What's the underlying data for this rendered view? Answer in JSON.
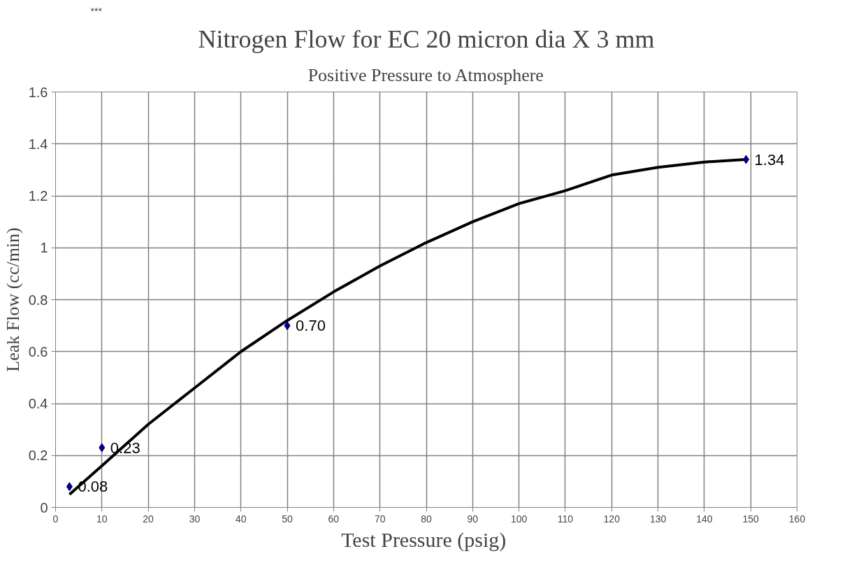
{
  "chart_data": {
    "type": "scatter",
    "title": "Nitrogen Flow for EC 20 micron dia X 3 mm",
    "subtitle": "Positive Pressure to Atmosphere",
    "xlabel": "Test Pressure  (psig)",
    "ylabel": "Leak Flow (cc/min)",
    "annotations": [
      "***"
    ],
    "x": [
      3,
      10,
      50,
      149
    ],
    "series": [
      {
        "color": "#000080",
        "values": [
          0.08,
          0.23,
          0.7,
          1.34
        ],
        "value_labels": [
          "0.08",
          "0.23",
          "0.70",
          "1.34"
        ],
        "marker": "diamond"
      },
      {
        "type": "line",
        "color": "#000000",
        "x": [
          3,
          10,
          20,
          30,
          40,
          50,
          60,
          70,
          80,
          90,
          100,
          110,
          120,
          130,
          140,
          149
        ],
        "values": [
          0.05,
          0.16,
          0.32,
          0.46,
          0.6,
          0.72,
          0.83,
          0.93,
          1.02,
          1.1,
          1.17,
          1.22,
          1.28,
          1.31,
          1.33,
          1.34
        ],
        "marker": "none",
        "line_style": "solid"
      }
    ],
    "xlim": [
      0,
      160
    ],
    "ylim": [
      0,
      1.6
    ],
    "xticks": [
      0,
      10,
      20,
      30,
      40,
      50,
      60,
      70,
      80,
      90,
      100,
      110,
      120,
      130,
      140,
      150,
      160
    ],
    "yticks": [
      0,
      0.2,
      0.4,
      0.6,
      0.8,
      1,
      1.2,
      1.4,
      1.6
    ],
    "grid": true
  }
}
